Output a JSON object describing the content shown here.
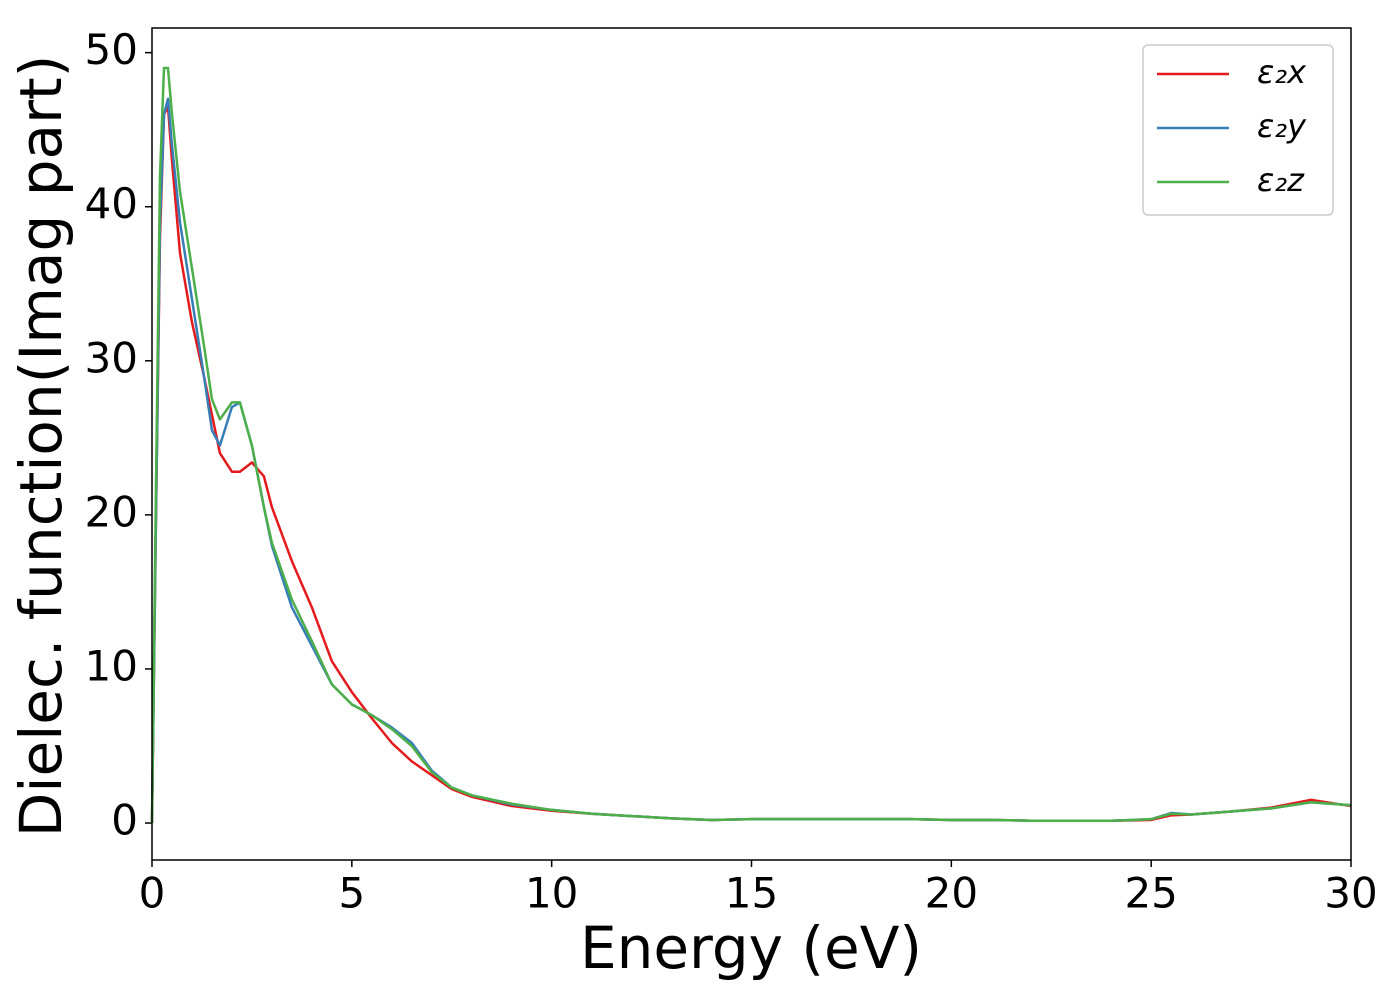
{
  "chart_data": {
    "type": "line",
    "x_label": "Energy (eV)",
    "y_label": "Dielec. function(Imag part)",
    "x": [
      0,
      0.1,
      0.2,
      0.3,
      0.4,
      0.5,
      0.7,
      1.0,
      1.3,
      1.5,
      1.7,
      2.0,
      2.2,
      2.5,
      2.8,
      3.0,
      3.5,
      4.0,
      4.5,
      5.0,
      5.5,
      6.0,
      6.5,
      7.0,
      7.5,
      8,
      9,
      10,
      11,
      12,
      13,
      14,
      15,
      16,
      17,
      18,
      19,
      20,
      21,
      22,
      23,
      24,
      25,
      25.5,
      26,
      27,
      28,
      29,
      30
    ],
    "series": [
      {
        "name": "ε₂x",
        "color": "#e41a1c",
        "values": [
          0,
          20,
          38,
          46,
          46.5,
          43,
          37,
          32.5,
          29,
          26.5,
          24,
          22.8,
          22.8,
          23.4,
          22.5,
          20.5,
          17,
          14,
          10.5,
          8.5,
          6.8,
          5.2,
          4.0,
          3.1,
          2.2,
          1.7,
          1.1,
          0.8,
          0.6,
          0.45,
          0.3,
          0.2,
          0.25,
          0.25,
          0.25,
          0.25,
          0.25,
          0.2,
          0.2,
          0.15,
          0.15,
          0.15,
          0.2,
          0.5,
          0.55,
          0.75,
          1.0,
          1.5,
          1.1
        ]
      },
      {
        "name": "ε₂y",
        "color": "#377eb8",
        "values": [
          0,
          20,
          39,
          46,
          47,
          44,
          39,
          34,
          29,
          25.5,
          24.5,
          27,
          27.3,
          24.5,
          20.5,
          18,
          14,
          11.5,
          9,
          7.7,
          7.0,
          6.2,
          5.2,
          3.4,
          2.3,
          1.8,
          1.2,
          0.85,
          0.6,
          0.45,
          0.3,
          0.2,
          0.25,
          0.25,
          0.25,
          0.25,
          0.25,
          0.2,
          0.2,
          0.15,
          0.15,
          0.15,
          0.25,
          0.65,
          0.55,
          0.75,
          0.95,
          1.35,
          1.15
        ]
      },
      {
        "name": "ε₂z",
        "color": "#4daf4a",
        "values": [
          0,
          22,
          42,
          49,
          49,
          46,
          41,
          36,
          31,
          27.5,
          26.2,
          27.3,
          27.3,
          24.5,
          20.5,
          18.2,
          14.5,
          11.8,
          9,
          7.7,
          7.0,
          6.1,
          5.0,
          3.3,
          2.3,
          1.8,
          1.25,
          0.85,
          0.6,
          0.45,
          0.3,
          0.2,
          0.25,
          0.25,
          0.25,
          0.25,
          0.25,
          0.2,
          0.2,
          0.15,
          0.15,
          0.15,
          0.25,
          0.6,
          0.55,
          0.75,
          0.95,
          1.35,
          1.15
        ]
      }
    ],
    "xlim": [
      0,
      30
    ],
    "xticks": [
      0,
      5,
      10,
      15,
      20,
      25,
      30
    ],
    "ylim": [
      -2.4,
      51.6
    ],
    "yticks": [
      0,
      10,
      20,
      30,
      40,
      50
    ],
    "grid": false,
    "legend": "upper right"
  }
}
